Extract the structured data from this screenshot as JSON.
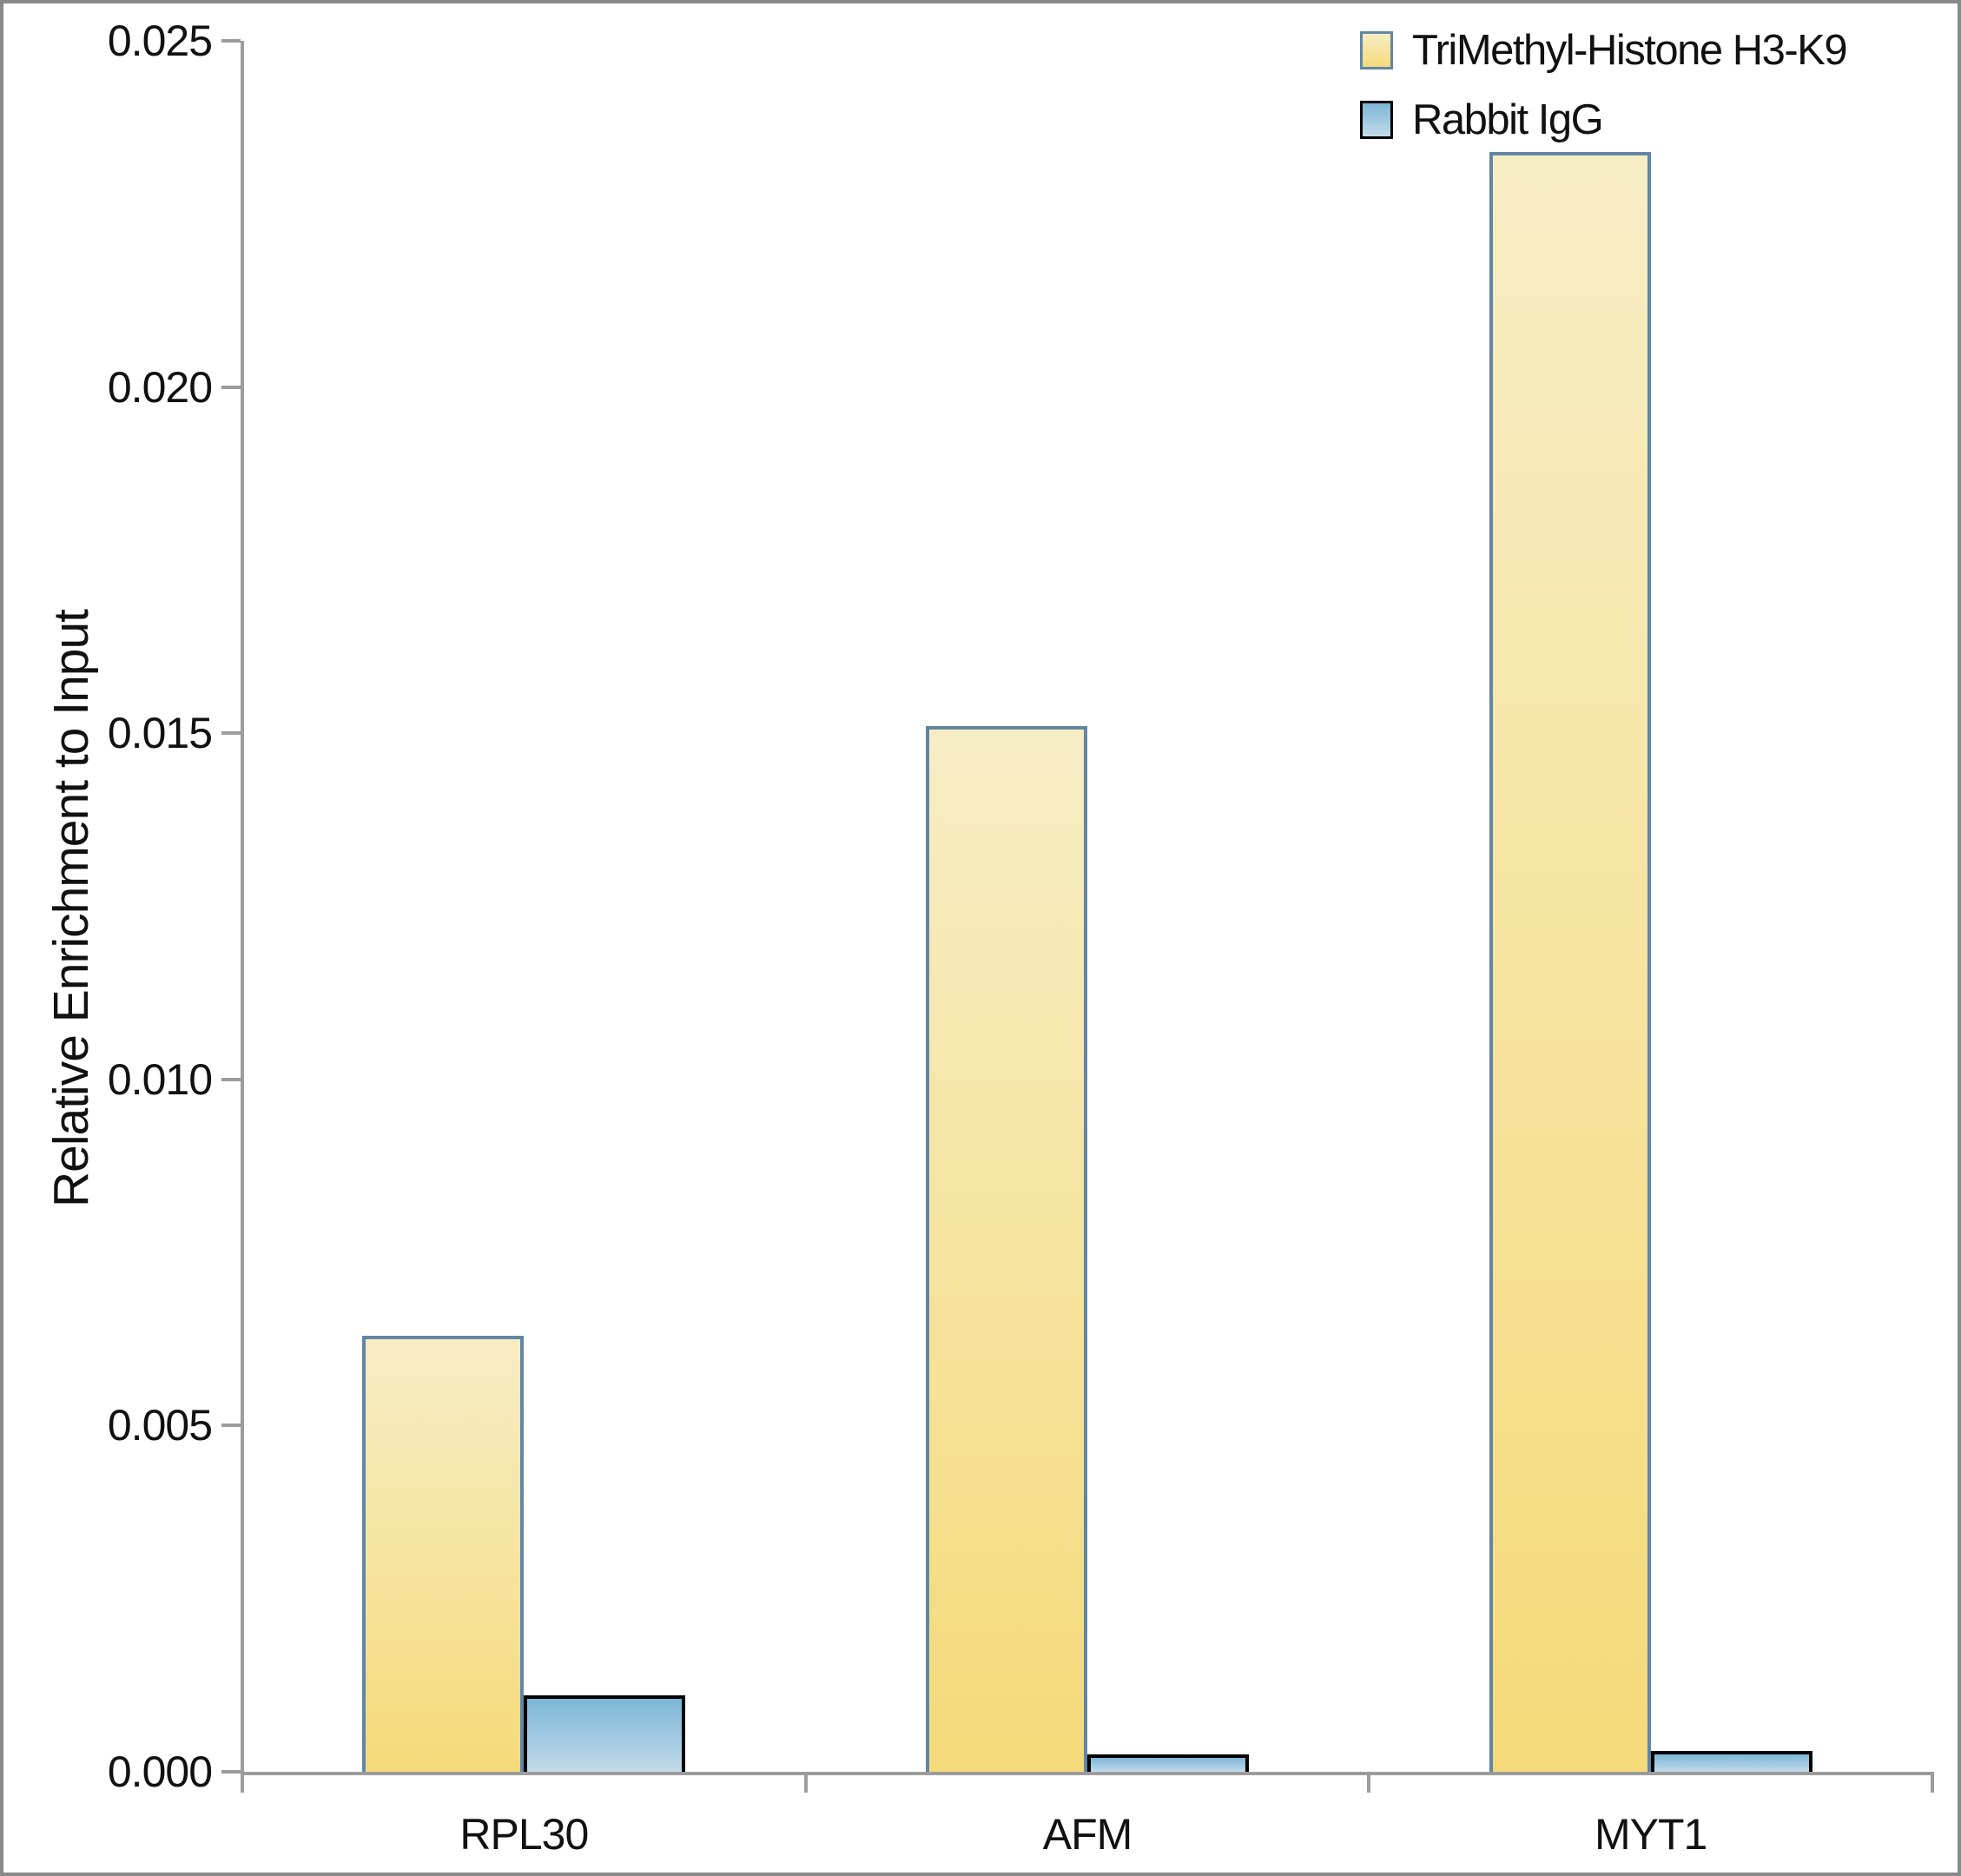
{
  "chart_data": {
    "type": "bar",
    "title": "",
    "categories": [
      "RPL30",
      "AFM",
      "MYT1"
    ],
    "series": [
      {
        "name": "TriMethyl-Histone H3-K9",
        "values": [
          0.0063,
          0.0151,
          0.0234
        ],
        "color_top": "#F7EDC4",
        "color_bottom": "#F5DA7A",
        "border_color": "#6286A4"
      },
      {
        "name": "Rabbit IgG",
        "values": [
          0.0011,
          0.00025,
          0.0003
        ],
        "color_top": "#7CB6D7",
        "color_bottom": "#C2DBEA",
        "border_color": "#000000"
      }
    ],
    "xlabel": "",
    "ylabel": "Relative Enrichment to Input",
    "ylim": [
      0,
      0.025
    ],
    "ytick_step": 0.005,
    "ytick_labels": [
      "0.000",
      "0.005",
      "0.010",
      "0.015",
      "0.020",
      "0.025"
    ],
    "grid": false,
    "legend_position": "top-right",
    "axis_color": "#9C9C9C",
    "frame_color": "#898989",
    "text_color": "#111111"
  }
}
